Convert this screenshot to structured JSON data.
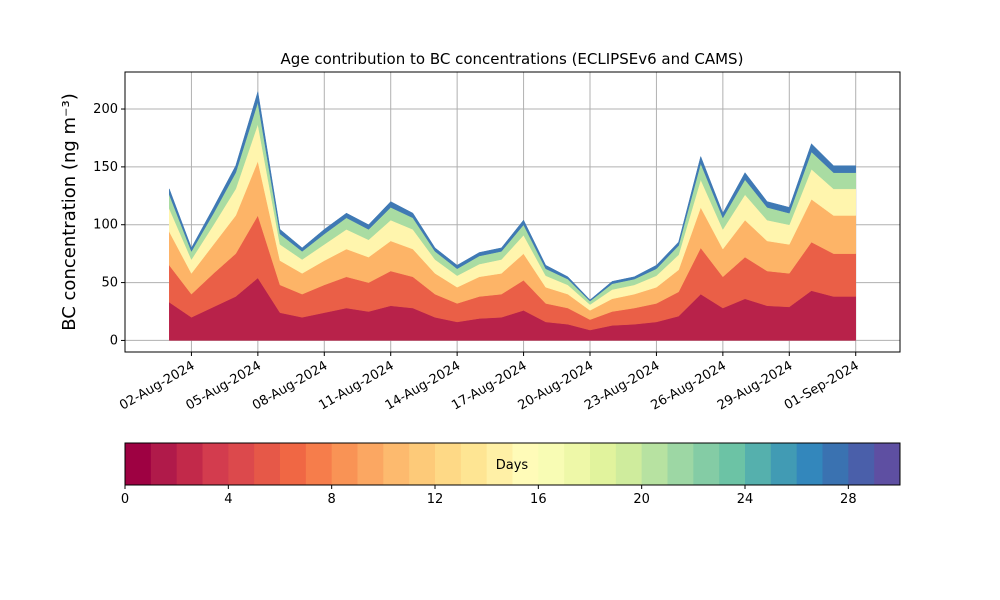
{
  "chart_data": {
    "type": "stacked_area",
    "title": "Age contribution to BC concentrations (ECLIPSEv6 and CAMS)",
    "ylabel": "BC concentration (ng m⁻³)",
    "x": [
      "2024-08-01",
      "2024-08-02",
      "2024-08-03",
      "2024-08-04",
      "2024-08-05",
      "2024-08-06",
      "2024-08-07",
      "2024-08-08",
      "2024-08-09",
      "2024-08-10",
      "2024-08-11",
      "2024-08-12",
      "2024-08-13",
      "2024-08-14",
      "2024-08-15",
      "2024-08-16",
      "2024-08-17",
      "2024-08-18",
      "2024-08-19",
      "2024-08-20",
      "2024-08-21",
      "2024-08-22",
      "2024-08-23",
      "2024-08-24",
      "2024-08-25",
      "2024-08-26",
      "2024-08-27",
      "2024-08-28",
      "2024-08-29",
      "2024-08-30",
      "2024-08-31",
      "2024-09-01"
    ],
    "series": [
      {
        "color": "#b8224a",
        "values": [
          33,
          20,
          29,
          38,
          54,
          24,
          20,
          24,
          28,
          25,
          30,
          28,
          20,
          16,
          19,
          20,
          26,
          16,
          14,
          9,
          13,
          14,
          16,
          21,
          40,
          28,
          36,
          30,
          29,
          43,
          38,
          38
        ]
      },
      {
        "color": "#ea5f47",
        "values": [
          32,
          20,
          29,
          37,
          54,
          24,
          20,
          24,
          27,
          25,
          30,
          27,
          20,
          16,
          19,
          20,
          26,
          16,
          14,
          9,
          12,
          14,
          16,
          21,
          40,
          27,
          36,
          30,
          29,
          42,
          37,
          37
        ]
      },
      {
        "color": "#fdb467",
        "values": [
          29,
          18,
          25,
          33,
          47,
          21,
          18,
          21,
          24,
          22,
          26,
          24,
          18,
          14,
          17,
          18,
          23,
          14,
          12,
          8,
          11,
          12,
          14,
          19,
          35,
          24,
          32,
          26,
          25,
          37,
          33,
          33
        ]
      },
      {
        "color": "#fff5ad",
        "values": [
          20,
          12,
          17,
          23,
          32,
          14,
          12,
          14,
          17,
          15,
          18,
          17,
          12,
          10,
          11,
          12,
          16,
          10,
          8,
          5,
          8,
          8,
          10,
          13,
          24,
          17,
          22,
          18,
          17,
          26,
          23,
          23
        ]
      },
      {
        "color": "#a9dca2",
        "values": [
          12,
          7,
          10,
          14,
          19,
          9,
          7,
          9,
          10,
          9,
          11,
          10,
          7,
          6,
          7,
          7,
          9,
          6,
          5,
          3,
          5,
          5,
          6,
          8,
          14,
          10,
          13,
          11,
          10,
          15,
          14,
          14
        ]
      },
      {
        "color": "#3f79b4",
        "values": [
          5,
          3,
          5,
          6,
          9,
          4,
          3,
          4,
          4,
          4,
          5,
          4,
          3,
          3,
          3,
          3,
          4,
          3,
          2,
          1,
          2,
          2,
          3,
          3,
          6,
          4,
          6,
          5,
          5,
          7,
          6,
          6
        ]
      }
    ],
    "xlim": [
      "2024-07-30",
      "2024-09-03"
    ],
    "xticks": [
      {
        "value": "2024-08-02",
        "label": "02-Aug-2024"
      },
      {
        "value": "2024-08-05",
        "label": "05-Aug-2024"
      },
      {
        "value": "2024-08-08",
        "label": "08-Aug-2024"
      },
      {
        "value": "2024-08-11",
        "label": "11-Aug-2024"
      },
      {
        "value": "2024-08-14",
        "label": "14-Aug-2024"
      },
      {
        "value": "2024-08-17",
        "label": "17-Aug-2024"
      },
      {
        "value": "2024-08-20",
        "label": "20-Aug-2024"
      },
      {
        "value": "2024-08-23",
        "label": "23-Aug-2024"
      },
      {
        "value": "2024-08-26",
        "label": "26-Aug-2024"
      },
      {
        "value": "2024-08-29",
        "label": "29-Aug-2024"
      },
      {
        "value": "2024-09-01",
        "label": "01-Sep-2024"
      }
    ],
    "ylim": [
      -10,
      232
    ],
    "yticks": [
      0,
      50,
      100,
      150,
      200
    ],
    "grid": true,
    "colorbar": {
      "label": "Days",
      "lim": [
        0,
        30
      ],
      "ticks": [
        0,
        4,
        8,
        12,
        16,
        20,
        24,
        28
      ],
      "colors": [
        "#9e0142",
        "#b01a4a",
        "#c2294a",
        "#d33c4e",
        "#dc494c",
        "#e65848",
        "#f06744",
        "#f67d4b",
        "#f99355",
        "#fba762",
        "#fdba6e",
        "#fdca79",
        "#fed986",
        "#fee593",
        "#fff0a6",
        "#fffbb8",
        "#f8fcb4",
        "#eef8a8",
        "#e1f39d",
        "#cfec9d",
        "#b7e2a1",
        "#9dd7a4",
        "#84cca5",
        "#6cc3a5",
        "#55b0ad",
        "#419bb4",
        "#3387bc",
        "#3a72b1",
        "#4a5faa",
        "#5e4fa2"
      ]
    }
  }
}
